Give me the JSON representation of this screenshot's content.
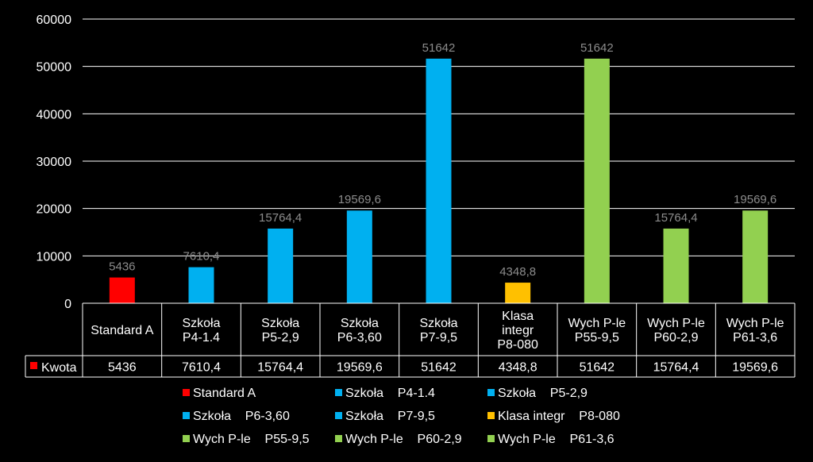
{
  "chart_data": {
    "type": "bar",
    "categories": [
      [
        "Standard A"
      ],
      [
        "Szkoła",
        "P4-1.4"
      ],
      [
        "Szkoła",
        "P5-2,9"
      ],
      [
        "Szkoła",
        "P6-3,60"
      ],
      [
        "Szkoła",
        "P7-9,5"
      ],
      [
        "Klasa",
        "integr",
        "P8-080"
      ],
      [
        "Wych P-le",
        "P55-9,5"
      ],
      [
        "Wych P-le",
        "P60-2,9"
      ],
      [
        "Wych P-le",
        "P61-3,6"
      ]
    ],
    "values": [
      5436,
      7610.4,
      15764.4,
      19569.6,
      51642,
      4348.8,
      51642,
      15764.4,
      19569.6
    ],
    "value_labels": [
      "5436",
      "7610,4",
      "15764,4",
      "19569,6",
      "51642",
      "4348,8",
      "51642",
      "15764,4",
      "19569,6"
    ],
    "colors": [
      "#ff0000",
      "#00b0f0",
      "#00b0f0",
      "#00b0f0",
      "#00b0f0",
      "#ffc000",
      "#92d050",
      "#92d050",
      "#92d050"
    ],
    "ylim": [
      0,
      60000
    ],
    "yticks": [
      "0",
      "10000",
      "20000",
      "30000",
      "40000",
      "50000",
      "60000"
    ],
    "grid": true,
    "data_table": {
      "series_name": "Kwota",
      "legend_key_color": "#ff0000"
    },
    "legend": {
      "placement": "bottom",
      "items": [
        {
          "label": "Standard A",
          "color": "#ff0000"
        },
        {
          "label": "Szkoła    P4-1.4",
          "color": "#00b0f0"
        },
        {
          "label": "Szkoła    P5-2,9",
          "color": "#00b0f0"
        },
        {
          "label": "Szkoła    P6-3,60",
          "color": "#00b0f0"
        },
        {
          "label": "Szkoła    P7-9,5",
          "color": "#00b0f0"
        },
        {
          "label": "Klasa integr    P8-080",
          "color": "#ffc000"
        },
        {
          "label": "Wych P-le    P55-9,5",
          "color": "#92d050"
        },
        {
          "label": "Wych P-le    P60-2,9",
          "color": "#92d050"
        },
        {
          "label": "Wych P-le    P61-3,6",
          "color": "#92d050"
        }
      ]
    }
  }
}
